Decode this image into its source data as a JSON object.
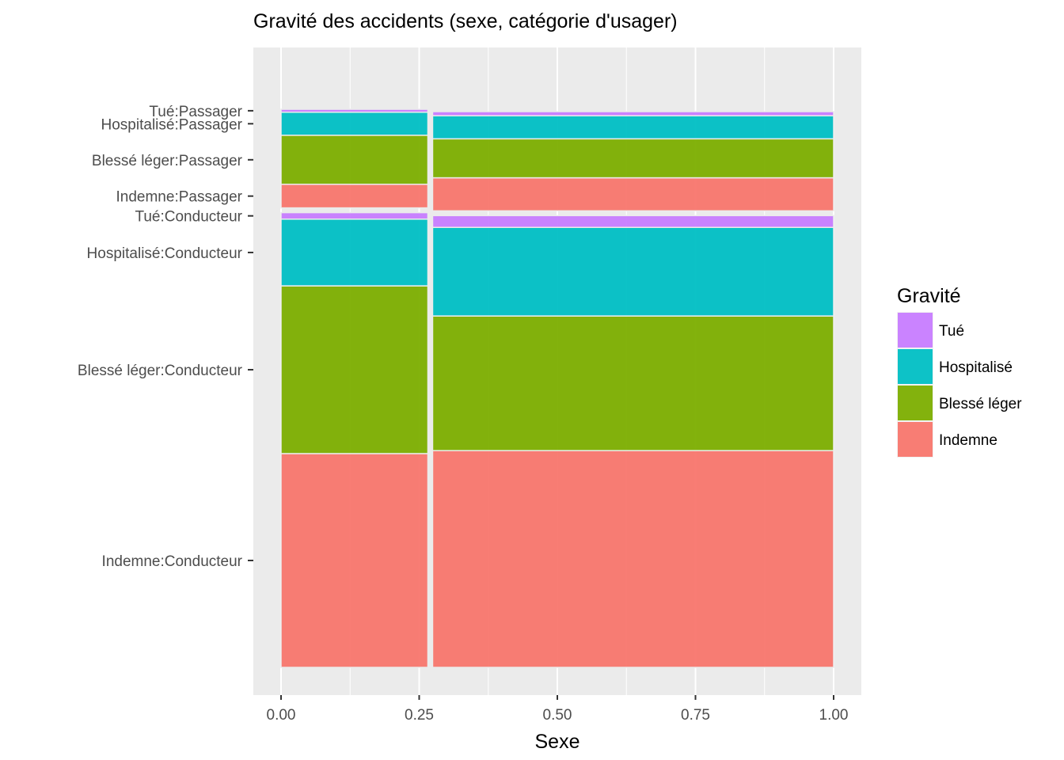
{
  "chart_data": {
    "type": "mosaic",
    "title": "Gravité des accidents (sexe, catégorie d'usager)",
    "xlabel": "Sexe",
    "ylabel": "",
    "xlim": [
      0,
      1
    ],
    "x_ticks": [
      "0.00",
      "0.25",
      "0.50",
      "0.75",
      "1.00"
    ],
    "x_tick_values": [
      0,
      0.25,
      0.5,
      0.75,
      1
    ],
    "grid": true,
    "legend": {
      "title": "Gravité",
      "placement": "right",
      "entries": [
        {
          "label": "Tué",
          "color": "#C77CFF"
        },
        {
          "label": "Hospitalisé",
          "color": "#00BFC4"
        },
        {
          "label": "Blessé léger",
          "color": "#7CAE00"
        },
        {
          "label": "Indemne",
          "color": "#F8766D"
        }
      ]
    },
    "y_labels": [
      "Indemne:Conducteur",
      "Blessé léger:Conducteur",
      "Hospitalisé:Conducteur",
      "Tué:Conducteur",
      "Indemne:Passager",
      "Blessé léger:Passager",
      "Hospitalisé:Passager",
      "Tué:Passager"
    ],
    "columns": [
      {
        "share": 0.27,
        "groups": [
          {
            "name": "Conducteur",
            "share": 0.8,
            "severity": {
              "Indemne": 0.362,
              "Blessé léger": 0.284,
              "Hospitalisé": 0.113,
              "Tué": 0.015
            }
          },
          {
            "name": "Passager",
            "share": 0.2,
            "severity": {
              "Indemne": 0.044,
              "Blessé léger": 0.083,
              "Hospitalisé": 0.039,
              "Tué": 0.005
            }
          }
        ]
      },
      {
        "share": 0.73,
        "groups": [
          {
            "name": "Conducteur",
            "share": 0.8,
            "severity": {
              "Indemne": 0.367,
              "Blessé léger": 0.228,
              "Hospitalisé": 0.15,
              "Tué": 0.024
            }
          },
          {
            "name": "Passager",
            "share": 0.2,
            "severity": {
              "Indemne": 0.06,
              "Blessé léger": 0.066,
              "Hospitalisé": 0.039,
              "Tué": 0.007
            }
          }
        ]
      }
    ]
  }
}
